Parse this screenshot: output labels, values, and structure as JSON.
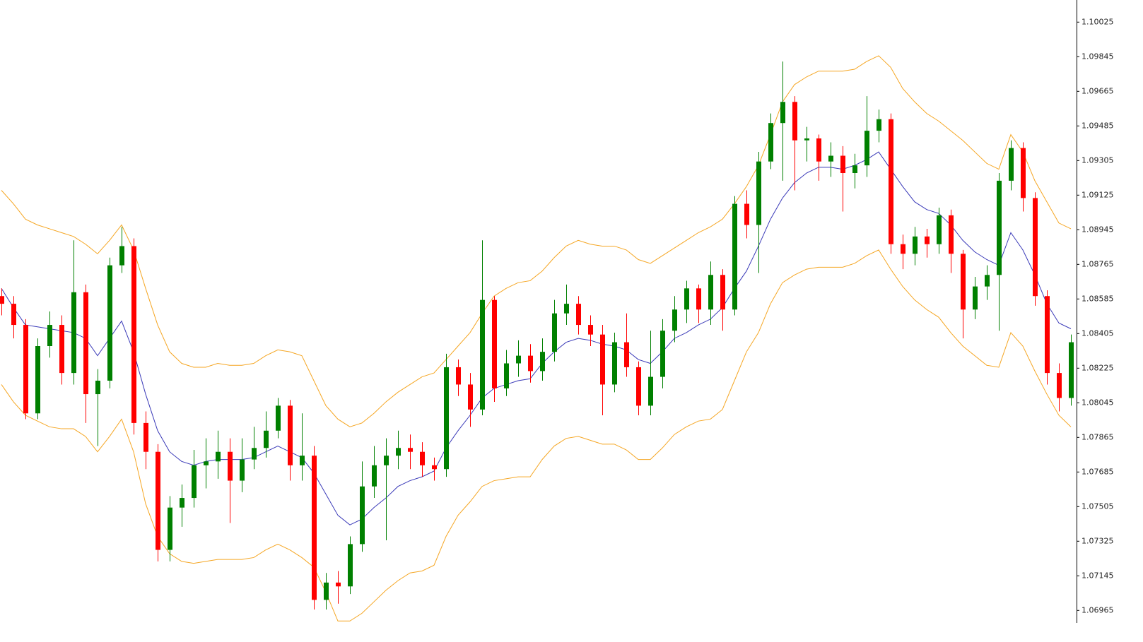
{
  "chart_data": {
    "type": "candlestick",
    "up_color": "#008000",
    "down_color": "#ff0000",
    "grid": false,
    "ylim": [
      1.069,
      1.1014
    ],
    "yticks": [
      1.10025,
      1.09845,
      1.09665,
      1.09485,
      1.09305,
      1.09125,
      1.08945,
      1.08765,
      1.08585,
      1.08405,
      1.08225,
      1.08045,
      1.07865,
      1.07685,
      1.07505,
      1.07325,
      1.07145,
      1.06965
    ],
    "open": [
      1.086,
      1.0856,
      1.0845,
      1.0799,
      1.0834,
      1.0845,
      1.082,
      1.0862,
      1.0809,
      1.0816,
      1.0876,
      1.0886,
      1.0794,
      1.0779,
      1.0728,
      1.075,
      1.0755,
      1.0772,
      1.0774,
      1.0779,
      1.0764,
      1.0775,
      1.0781,
      1.079,
      1.0803,
      1.0772,
      1.0777,
      1.0702,
      1.0711,
      1.0709,
      1.0731,
      1.0761,
      1.0772,
      1.0777,
      1.0781,
      1.0779,
      1.0772,
      1.077,
      1.0823,
      1.0814,
      1.0801,
      1.0858,
      1.0812,
      1.0825,
      1.0829,
      1.0821,
      1.0831,
      1.0851,
      1.0856,
      1.0845,
      1.084,
      1.0814,
      1.0836,
      1.0823,
      1.0803,
      1.0818,
      1.0842,
      1.0853,
      1.0864,
      1.0853,
      1.0871,
      1.0853,
      1.0908,
      1.0897,
      1.093,
      1.095,
      1.0961,
      1.0941,
      1.0942,
      1.093,
      1.0933,
      1.0924,
      1.0928,
      1.0946,
      1.0952,
      1.0887,
      1.0882,
      1.0891,
      1.0887,
      1.0902,
      1.0882,
      1.0853,
      1.0865,
      1.0871,
      1.092,
      1.0937,
      1.0911,
      1.086,
      1.082,
      1.0807
    ],
    "high": [
      1.0864,
      1.086,
      1.0848,
      1.0838,
      1.0852,
      1.085,
      1.0889,
      1.0866,
      1.0822,
      1.088,
      1.0896,
      1.089,
      1.08,
      1.0783,
      1.0756,
      1.0762,
      1.078,
      1.0786,
      1.079,
      1.0786,
      1.0786,
      1.0792,
      1.08,
      1.0807,
      1.0806,
      1.0799,
      1.0782,
      1.0716,
      1.0717,
      1.0735,
      1.0774,
      1.0782,
      1.0786,
      1.079,
      1.0788,
      1.0784,
      1.0776,
      1.083,
      1.0827,
      1.082,
      1.0889,
      1.086,
      1.0832,
      1.0837,
      1.0835,
      1.0838,
      1.0858,
      1.0866,
      1.086,
      1.085,
      1.0845,
      1.0841,
      1.0851,
      1.0826,
      1.0842,
      1.0848,
      1.086,
      1.0868,
      1.0866,
      1.0878,
      1.0874,
      1.0912,
      1.0915,
      1.0935,
      1.0955,
      1.0982,
      1.0964,
      1.0948,
      1.0944,
      1.094,
      1.0938,
      1.0934,
      1.0964,
      1.0957,
      1.0955,
      1.0892,
      1.0896,
      1.0895,
      1.0906,
      1.0905,
      1.0884,
      1.087,
      1.0876,
      1.0924,
      1.0941,
      1.094,
      1.0914,
      1.0863,
      1.0825,
      1.084
    ],
    "low": [
      1.085,
      1.0838,
      1.0796,
      1.0796,
      1.0828,
      1.0814,
      1.0814,
      1.0794,
      1.0782,
      1.0812,
      1.0872,
      1.0788,
      1.077,
      1.0722,
      1.0722,
      1.074,
      1.075,
      1.076,
      1.0765,
      1.0742,
      1.0758,
      1.077,
      1.0776,
      1.0786,
      1.0764,
      1.0764,
      1.0697,
      1.0697,
      1.07,
      1.0705,
      1.0727,
      1.0755,
      1.0733,
      1.077,
      1.077,
      1.0766,
      1.0764,
      1.0766,
      1.0808,
      1.0792,
      1.0798,
      1.0805,
      1.0808,
      1.0818,
      1.0815,
      1.0816,
      1.0826,
      1.0845,
      1.084,
      1.0834,
      1.0798,
      1.081,
      1.0818,
      1.0798,
      1.0798,
      1.0812,
      1.0836,
      1.0846,
      1.0846,
      1.0845,
      1.0842,
      1.085,
      1.089,
      1.0872,
      1.0926,
      1.092,
      1.0915,
      1.093,
      1.092,
      1.0922,
      1.0904,
      1.0916,
      1.0922,
      1.094,
      1.0882,
      1.0874,
      1.0876,
      1.088,
      1.0882,
      1.0872,
      1.0838,
      1.0848,
      1.0858,
      1.0842,
      1.0915,
      1.0904,
      1.0855,
      1.0814,
      1.08,
      1.0803
    ],
    "close": [
      1.0856,
      1.0845,
      1.0799,
      1.0834,
      1.0845,
      1.082,
      1.0862,
      1.0809,
      1.0816,
      1.0876,
      1.0886,
      1.0794,
      1.0779,
      1.0728,
      1.075,
      1.0755,
      1.0772,
      1.0774,
      1.0779,
      1.0764,
      1.0775,
      1.0781,
      1.079,
      1.0803,
      1.0772,
      1.0777,
      1.0702,
      1.0711,
      1.0709,
      1.0731,
      1.0761,
      1.0772,
      1.0777,
      1.0781,
      1.0779,
      1.0772,
      1.077,
      1.0823,
      1.0814,
      1.0801,
      1.0858,
      1.0812,
      1.0825,
      1.0829,
      1.0821,
      1.0831,
      1.0851,
      1.0856,
      1.0845,
      1.084,
      1.0814,
      1.0836,
      1.0823,
      1.0803,
      1.0818,
      1.0842,
      1.0853,
      1.0864,
      1.0853,
      1.0871,
      1.0853,
      1.0908,
      1.0897,
      1.093,
      1.095,
      1.0961,
      1.0941,
      1.0942,
      1.093,
      1.0933,
      1.0924,
      1.0928,
      1.0946,
      1.0952,
      1.0887,
      1.0882,
      1.0891,
      1.0887,
      1.0902,
      1.0882,
      1.0853,
      1.0865,
      1.0871,
      1.092,
      1.0937,
      1.0911,
      1.086,
      1.082,
      1.0807,
      1.0836
    ],
    "lines": [
      {
        "color": "#f5a623",
        "values": [
          1.0915,
          1.0908,
          1.09,
          1.0897,
          1.0895,
          1.0893,
          1.0891,
          1.0887,
          1.0882,
          1.0889,
          1.0897,
          1.0884,
          1.0864,
          1.0845,
          1.0831,
          1.0825,
          1.0823,
          1.0823,
          1.0825,
          1.0824,
          1.0824,
          1.0825,
          1.0829,
          1.0832,
          1.0831,
          1.0829,
          1.0816,
          1.0803,
          1.0796,
          1.0792,
          1.0794,
          1.0799,
          1.0805,
          1.081,
          1.0814,
          1.0818,
          1.082,
          1.0827,
          1.0834,
          1.0841,
          1.0851,
          1.086,
          1.0864,
          1.0867,
          1.0868,
          1.0873,
          1.088,
          1.0886,
          1.0889,
          1.0887,
          1.0886,
          1.0886,
          1.0884,
          1.0879,
          1.0877,
          1.0881,
          1.0885,
          1.0889,
          1.0893,
          1.0896,
          1.09,
          1.0908,
          1.0917,
          1.0928,
          1.0944,
          1.0961,
          1.097,
          1.0974,
          1.0977,
          1.0977,
          1.0977,
          1.0978,
          1.0982,
          1.0985,
          1.0979,
          1.0968,
          1.0961,
          1.0955,
          1.0951,
          1.0946,
          1.0941,
          1.0935,
          1.0929,
          1.0926,
          1.0944,
          1.0935,
          1.092,
          1.0909,
          1.0898,
          1.0895
        ]
      },
      {
        "color": "#3a3ab8",
        "values": [
          1.0864,
          1.0854,
          1.0845,
          1.0844,
          1.0843,
          1.0842,
          1.0841,
          1.0838,
          1.0829,
          1.0838,
          1.0847,
          1.0831,
          1.0809,
          1.079,
          1.0779,
          1.0774,
          1.0772,
          1.0774,
          1.0775,
          1.0775,
          1.0775,
          1.0776,
          1.0779,
          1.0782,
          1.0779,
          1.0776,
          1.0768,
          1.0757,
          1.0746,
          1.0741,
          1.0744,
          1.075,
          1.0755,
          1.0761,
          1.0764,
          1.0766,
          1.0769,
          1.0781,
          1.079,
          1.0798,
          1.0807,
          1.0812,
          1.0814,
          1.0816,
          1.0817,
          1.0825,
          1.0831,
          1.0836,
          1.0838,
          1.0837,
          1.0835,
          1.0834,
          1.0832,
          1.0827,
          1.0825,
          1.0831,
          1.0838,
          1.0841,
          1.0845,
          1.0848,
          1.0854,
          1.0864,
          1.0873,
          1.0886,
          1.09,
          1.0911,
          1.0919,
          1.0924,
          1.0927,
          1.0927,
          1.0926,
          1.0928,
          1.0931,
          1.0935,
          1.0926,
          1.0917,
          1.0909,
          1.0905,
          1.0903,
          1.0897,
          1.0889,
          1.0883,
          1.0879,
          1.0876,
          1.0893,
          1.0884,
          1.0871,
          1.0856,
          1.0846,
          1.0843
        ]
      },
      {
        "color": "#f5a623",
        "values": [
          1.0814,
          1.0805,
          1.0798,
          1.0795,
          1.0792,
          1.0791,
          1.0791,
          1.0787,
          1.0779,
          1.0787,
          1.0796,
          1.0779,
          1.0752,
          1.0735,
          1.0726,
          1.0722,
          1.0721,
          1.0722,
          1.0723,
          1.0723,
          1.0723,
          1.0724,
          1.0728,
          1.0731,
          1.0728,
          1.0724,
          1.0719,
          1.0706,
          1.0691,
          1.0691,
          1.0695,
          1.0701,
          1.0707,
          1.0712,
          1.0716,
          1.0717,
          1.072,
          1.0735,
          1.0746,
          1.0753,
          1.0761,
          1.0764,
          1.0765,
          1.0766,
          1.0766,
          1.0775,
          1.0782,
          1.0786,
          1.0787,
          1.0785,
          1.0783,
          1.0783,
          1.078,
          1.0775,
          1.0775,
          1.0781,
          1.0788,
          1.0792,
          1.0795,
          1.0796,
          1.0801,
          1.0816,
          1.0831,
          1.0841,
          1.0856,
          1.0867,
          1.0871,
          1.0874,
          1.0875,
          1.0875,
          1.0875,
          1.0877,
          1.0881,
          1.0884,
          1.0874,
          1.0865,
          1.0858,
          1.0853,
          1.0849,
          1.0841,
          1.0834,
          1.0829,
          1.0824,
          1.0823,
          1.0841,
          1.0834,
          1.0821,
          1.0809,
          1.0798,
          1.0792
        ]
      }
    ]
  }
}
